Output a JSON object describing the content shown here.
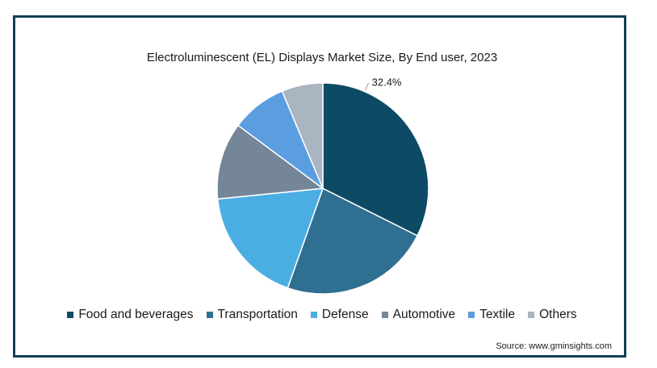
{
  "chart_data": {
    "type": "pie",
    "title": "Electroluminescent (EL) Displays Market Size, By End user, 2023",
    "series": [
      {
        "name": "Food and beverages",
        "value": 32.4,
        "color": "#0d4a66",
        "label": "32.4%"
      },
      {
        "name": "Transportation",
        "value": 23.0,
        "color": "#2f6f91",
        "label": ""
      },
      {
        "name": "Defense",
        "value": 18.0,
        "color": "#4aaee3",
        "label": ""
      },
      {
        "name": "Automotive",
        "value": 11.8,
        "color": "#758698",
        "label": ""
      },
      {
        "name": "Textile",
        "value": 8.5,
        "color": "#5b9ee0",
        "label": ""
      },
      {
        "name": "Others",
        "value": 6.3,
        "color": "#a9b6c1",
        "label": ""
      }
    ],
    "legend_position": "bottom"
  },
  "source": "Source: www.gminsights.com"
}
